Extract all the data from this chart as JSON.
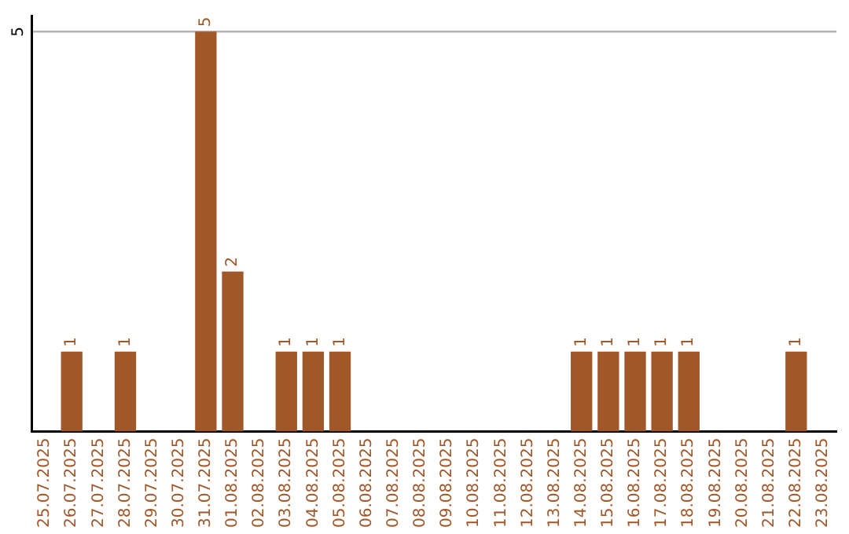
{
  "chart_data": {
    "type": "bar",
    "categories": [
      "25.07.2025",
      "26.07.2025",
      "27.07.2025",
      "28.07.2025",
      "29.07.2025",
      "30.07.2025",
      "31.07.2025",
      "01.08.2025",
      "02.08.2025",
      "03.08.2025",
      "04.08.2025",
      "05.08.2025",
      "06.08.2025",
      "07.08.2025",
      "08.08.2025",
      "09.08.2025",
      "10.08.2025",
      "11.08.2025",
      "12.08.2025",
      "13.08.2025",
      "14.08.2025",
      "15.08.2025",
      "16.08.2025",
      "17.08.2025",
      "18.08.2025",
      "19.08.2025",
      "20.08.2025",
      "21.08.2025",
      "22.08.2025",
      "23.08.2025"
    ],
    "values": [
      0,
      1,
      0,
      1,
      0,
      0,
      5,
      2,
      0,
      1,
      1,
      1,
      0,
      0,
      0,
      0,
      0,
      0,
      0,
      0,
      1,
      1,
      1,
      1,
      1,
      0,
      0,
      0,
      1,
      0
    ],
    "value_labels": [
      null,
      "1",
      null,
      "1",
      null,
      null,
      "5",
      "2",
      null,
      "1",
      "1",
      "1",
      null,
      null,
      null,
      null,
      null,
      null,
      null,
      null,
      "1",
      "1",
      "1",
      "1",
      "1",
      null,
      null,
      null,
      "1",
      null
    ],
    "color": "#a0572a",
    "ylim": [
      0,
      5.2
    ],
    "yticks": [
      5
    ],
    "grid": "y",
    "legend": false
  }
}
